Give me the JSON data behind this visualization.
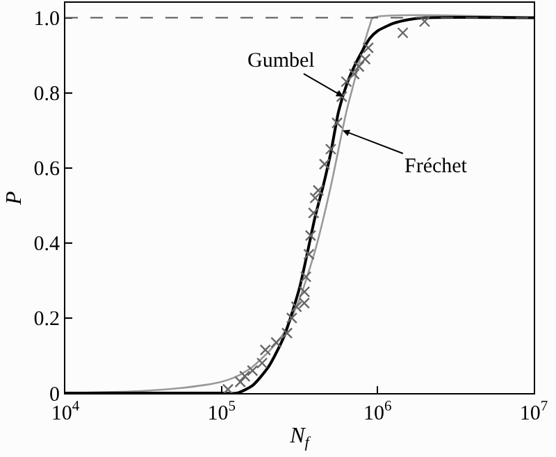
{
  "chart_data": {
    "type": "line",
    "xlabel": "N$_{f}$",
    "ylabel": "P",
    "log": "x",
    "xlim": [
      10000,
      10000000
    ],
    "xticks": [
      {
        "value": 10000,
        "label": "10$^{4}$"
      },
      {
        "value": 100000,
        "label": "10$^{5}$"
      },
      {
        "value": 1000000,
        "label": "10$^{6}$"
      },
      {
        "value": 10000000,
        "label": "10$^{7}$"
      }
    ],
    "ylim": [
      0,
      1.04
    ],
    "yticks": [
      0,
      0.2,
      0.4,
      0.6,
      0.8,
      {
        "value": 1,
        "label": "1.0"
      }
    ],
    "ref_lines": [
      {
        "axis": "y",
        "value": 1,
        "color": "#555555",
        "line_style": "dashed"
      }
    ],
    "series": [
      {
        "color": "#999999",
        "x": [
          10000,
          20000,
          31600,
          50100,
          79400,
          100000,
          126000,
          158000,
          200000,
          251000,
          316000,
          398000,
          501000,
          562000,
          631000,
          708000,
          794000,
          891000,
          933000,
          10000000
        ],
        "values": [
          0,
          0.003,
          0.006,
          0.012,
          0.022,
          0.03,
          0.045,
          0.07,
          0.11,
          0.16,
          0.25,
          0.38,
          0.55,
          0.65,
          0.75,
          0.83,
          0.91,
          0.98,
          1.0,
          1.0
        ]
      },
      {
        "color": "#000000",
        "x": [
          10000,
          100000,
          126000,
          158000,
          200000,
          251000,
          316000,
          398000,
          447000,
          501000,
          562000,
          631000,
          708000,
          794000,
          891000,
          1000000,
          1260000,
          1580000,
          2000000,
          10000000
        ],
        "values": [
          0,
          0,
          0,
          0.02,
          0.07,
          0.15,
          0.28,
          0.47,
          0.55,
          0.64,
          0.75,
          0.82,
          0.87,
          0.91,
          0.945,
          0.965,
          0.985,
          0.995,
          1.0,
          1.0
        ]
      },
      {
        "type": "scatter",
        "color": "#666666",
        "marker": "cross",
        "x": [
          110000,
          132000,
          141000,
          158000,
          182000,
          191000,
          224000,
          263000,
          282000,
          302000,
          339000,
          340000,
          347000,
          363000,
          372000,
          389000,
          398000,
          417000,
          457000,
          501000,
          550000,
          589000,
          631000,
          708000,
          759000,
          832000,
          871000,
          1450000,
          2000000
        ],
        "values": [
          0.01,
          0.03,
          0.045,
          0.06,
          0.08,
          0.115,
          0.135,
          0.16,
          0.2,
          0.23,
          0.24,
          0.27,
          0.31,
          0.37,
          0.42,
          0.48,
          0.52,
          0.54,
          0.61,
          0.65,
          0.72,
          0.79,
          0.83,
          0.85,
          0.87,
          0.89,
          0.92,
          0.96,
          0.99
        ]
      }
    ],
    "annotations": [
      {
        "text": "Gumbel",
        "x": 603000,
        "y": 0.79
      },
      {
        "text": "Fréchet",
        "x": 596000,
        "y": 0.7
      }
    ]
  }
}
